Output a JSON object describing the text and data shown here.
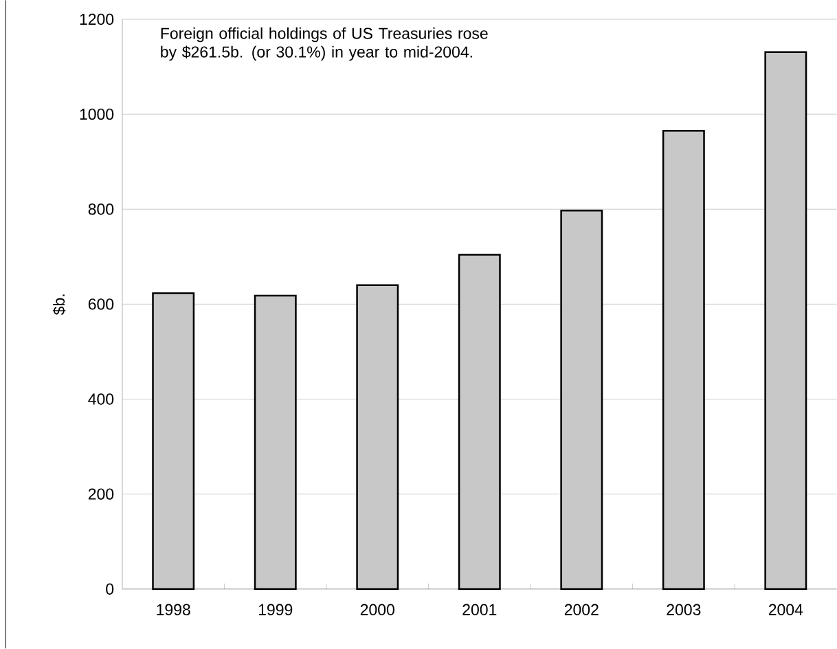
{
  "chart_data": {
    "type": "bar",
    "ylabel": "$b.",
    "annotations": [
      "Foreign official holdings of US Treasuries rose\nby $261.5b. (or 30.1%) in year to mid-2004."
    ],
    "categories": [
      "1998",
      "1999",
      "2000",
      "2001",
      "2002",
      "2003",
      "2004"
    ],
    "values": [
      623,
      618,
      640,
      704,
      797,
      965,
      1131
    ],
    "color": "#c8c8c8",
    "ylim": [
      0,
      1200
    ],
    "yticks": [
      0,
      200,
      400,
      600,
      800,
      1000,
      1200
    ],
    "grid": "y"
  }
}
